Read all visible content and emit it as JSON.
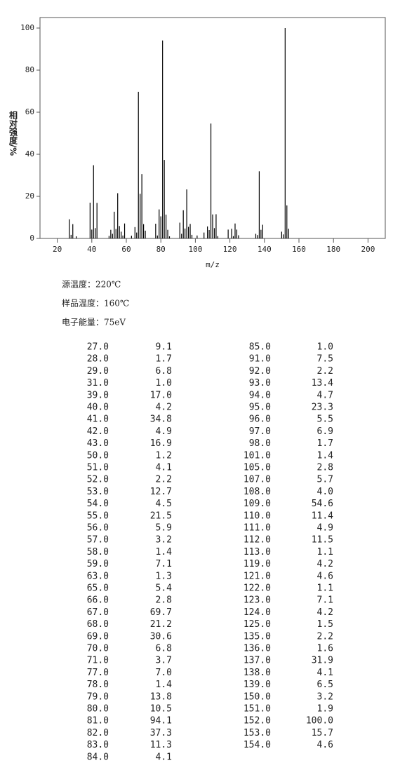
{
  "chart_data": {
    "type": "bar",
    "ylabel": "相对强度/%",
    "xlabel": "m/z",
    "color": "#000000",
    "x": [
      27,
      28,
      29,
      31,
      39,
      40,
      41,
      42,
      43,
      50,
      51,
      52,
      53,
      54,
      55,
      56,
      57,
      58,
      59,
      63,
      65,
      66,
      67,
      68,
      69,
      70,
      71,
      77,
      78,
      79,
      80,
      81,
      82,
      83,
      84,
      85,
      91,
      92,
      93,
      94,
      95,
      96,
      97,
      98,
      101,
      105,
      107,
      108,
      109,
      110,
      111,
      112,
      113,
      119,
      121,
      122,
      123,
      124,
      125,
      135,
      136,
      137,
      138,
      139,
      150,
      151,
      152,
      153,
      154
    ],
    "values": [
      9.1,
      1.7,
      6.8,
      1.0,
      17.0,
      4.2,
      34.8,
      4.9,
      16.9,
      1.2,
      4.1,
      2.2,
      12.7,
      4.5,
      21.5,
      5.9,
      3.2,
      1.4,
      7.1,
      1.3,
      5.4,
      2.8,
      69.7,
      21.2,
      30.6,
      6.8,
      3.7,
      7.0,
      1.4,
      13.8,
      10.5,
      94.1,
      37.3,
      11.3,
      4.1,
      1.0,
      7.5,
      2.2,
      13.4,
      4.7,
      23.3,
      5.5,
      6.9,
      1.7,
      1.4,
      2.8,
      5.7,
      4.0,
      54.6,
      11.4,
      4.9,
      11.5,
      1.1,
      4.2,
      4.6,
      1.1,
      7.1,
      4.2,
      1.5,
      2.2,
      1.6,
      31.9,
      4.1,
      6.5,
      3.2,
      1.9,
      100.0,
      15.7,
      4.6
    ],
    "xlim": [
      10,
      210
    ],
    "xticks": [
      20,
      40,
      60,
      80,
      100,
      120,
      140,
      160,
      180,
      200
    ],
    "ylim": [
      0,
      105
    ],
    "yticks": [
      0,
      20,
      40,
      60,
      80,
      100
    ]
  },
  "info": [
    "源温度：220℃",
    "样品温度：160℃",
    "电子能量：75eV"
  ],
  "peak_table": {
    "columns": [
      [
        [
          "27.0",
          "9.1"
        ],
        [
          "28.0",
          "1.7"
        ],
        [
          "29.0",
          "6.8"
        ],
        [
          "31.0",
          "1.0"
        ],
        [
          "39.0",
          "17.0"
        ],
        [
          "40.0",
          "4.2"
        ],
        [
          "41.0",
          "34.8"
        ],
        [
          "42.0",
          "4.9"
        ],
        [
          "43.0",
          "16.9"
        ],
        [
          "50.0",
          "1.2"
        ],
        [
          "51.0",
          "4.1"
        ],
        [
          "52.0",
          "2.2"
        ],
        [
          "53.0",
          "12.7"
        ],
        [
          "54.0",
          "4.5"
        ],
        [
          "55.0",
          "21.5"
        ],
        [
          "56.0",
          "5.9"
        ],
        [
          "57.0",
          "3.2"
        ],
        [
          "58.0",
          "1.4"
        ],
        [
          "59.0",
          "7.1"
        ],
        [
          "63.0",
          "1.3"
        ],
        [
          "65.0",
          "5.4"
        ],
        [
          "66.0",
          "2.8"
        ],
        [
          "67.0",
          "69.7"
        ],
        [
          "68.0",
          "21.2"
        ],
        [
          "69.0",
          "30.6"
        ],
        [
          "70.0",
          "6.8"
        ],
        [
          "71.0",
          "3.7"
        ],
        [
          "77.0",
          "7.0"
        ],
        [
          "78.0",
          "1.4"
        ],
        [
          "79.0",
          "13.8"
        ],
        [
          "80.0",
          "10.5"
        ],
        [
          "81.0",
          "94.1"
        ],
        [
          "82.0",
          "37.3"
        ],
        [
          "83.0",
          "11.3"
        ],
        [
          "84.0",
          "4.1"
        ]
      ],
      [
        [
          "85.0",
          "1.0"
        ],
        [
          "91.0",
          "7.5"
        ],
        [
          "92.0",
          "2.2"
        ],
        [
          "93.0",
          "13.4"
        ],
        [
          "94.0",
          "4.7"
        ],
        [
          "95.0",
          "23.3"
        ],
        [
          "96.0",
          "5.5"
        ],
        [
          "97.0",
          "6.9"
        ],
        [
          "98.0",
          "1.7"
        ],
        [
          "101.0",
          "1.4"
        ],
        [
          "105.0",
          "2.8"
        ],
        [
          "107.0",
          "5.7"
        ],
        [
          "108.0",
          "4.0"
        ],
        [
          "109.0",
          "54.6"
        ],
        [
          "110.0",
          "11.4"
        ],
        [
          "111.0",
          "4.9"
        ],
        [
          "112.0",
          "11.5"
        ],
        [
          "113.0",
          "1.1"
        ],
        [
          "119.0",
          "4.2"
        ],
        [
          "121.0",
          "4.6"
        ],
        [
          "122.0",
          "1.1"
        ],
        [
          "123.0",
          "7.1"
        ],
        [
          "124.0",
          "4.2"
        ],
        [
          "125.0",
          "1.5"
        ],
        [
          "135.0",
          "2.2"
        ],
        [
          "136.0",
          "1.6"
        ],
        [
          "137.0",
          "31.9"
        ],
        [
          "138.0",
          "4.1"
        ],
        [
          "139.0",
          "6.5"
        ],
        [
          "150.0",
          "3.2"
        ],
        [
          "151.0",
          "1.9"
        ],
        [
          "152.0",
          "100.0"
        ],
        [
          "153.0",
          "15.7"
        ],
        [
          "154.0",
          "4.6"
        ]
      ]
    ]
  }
}
